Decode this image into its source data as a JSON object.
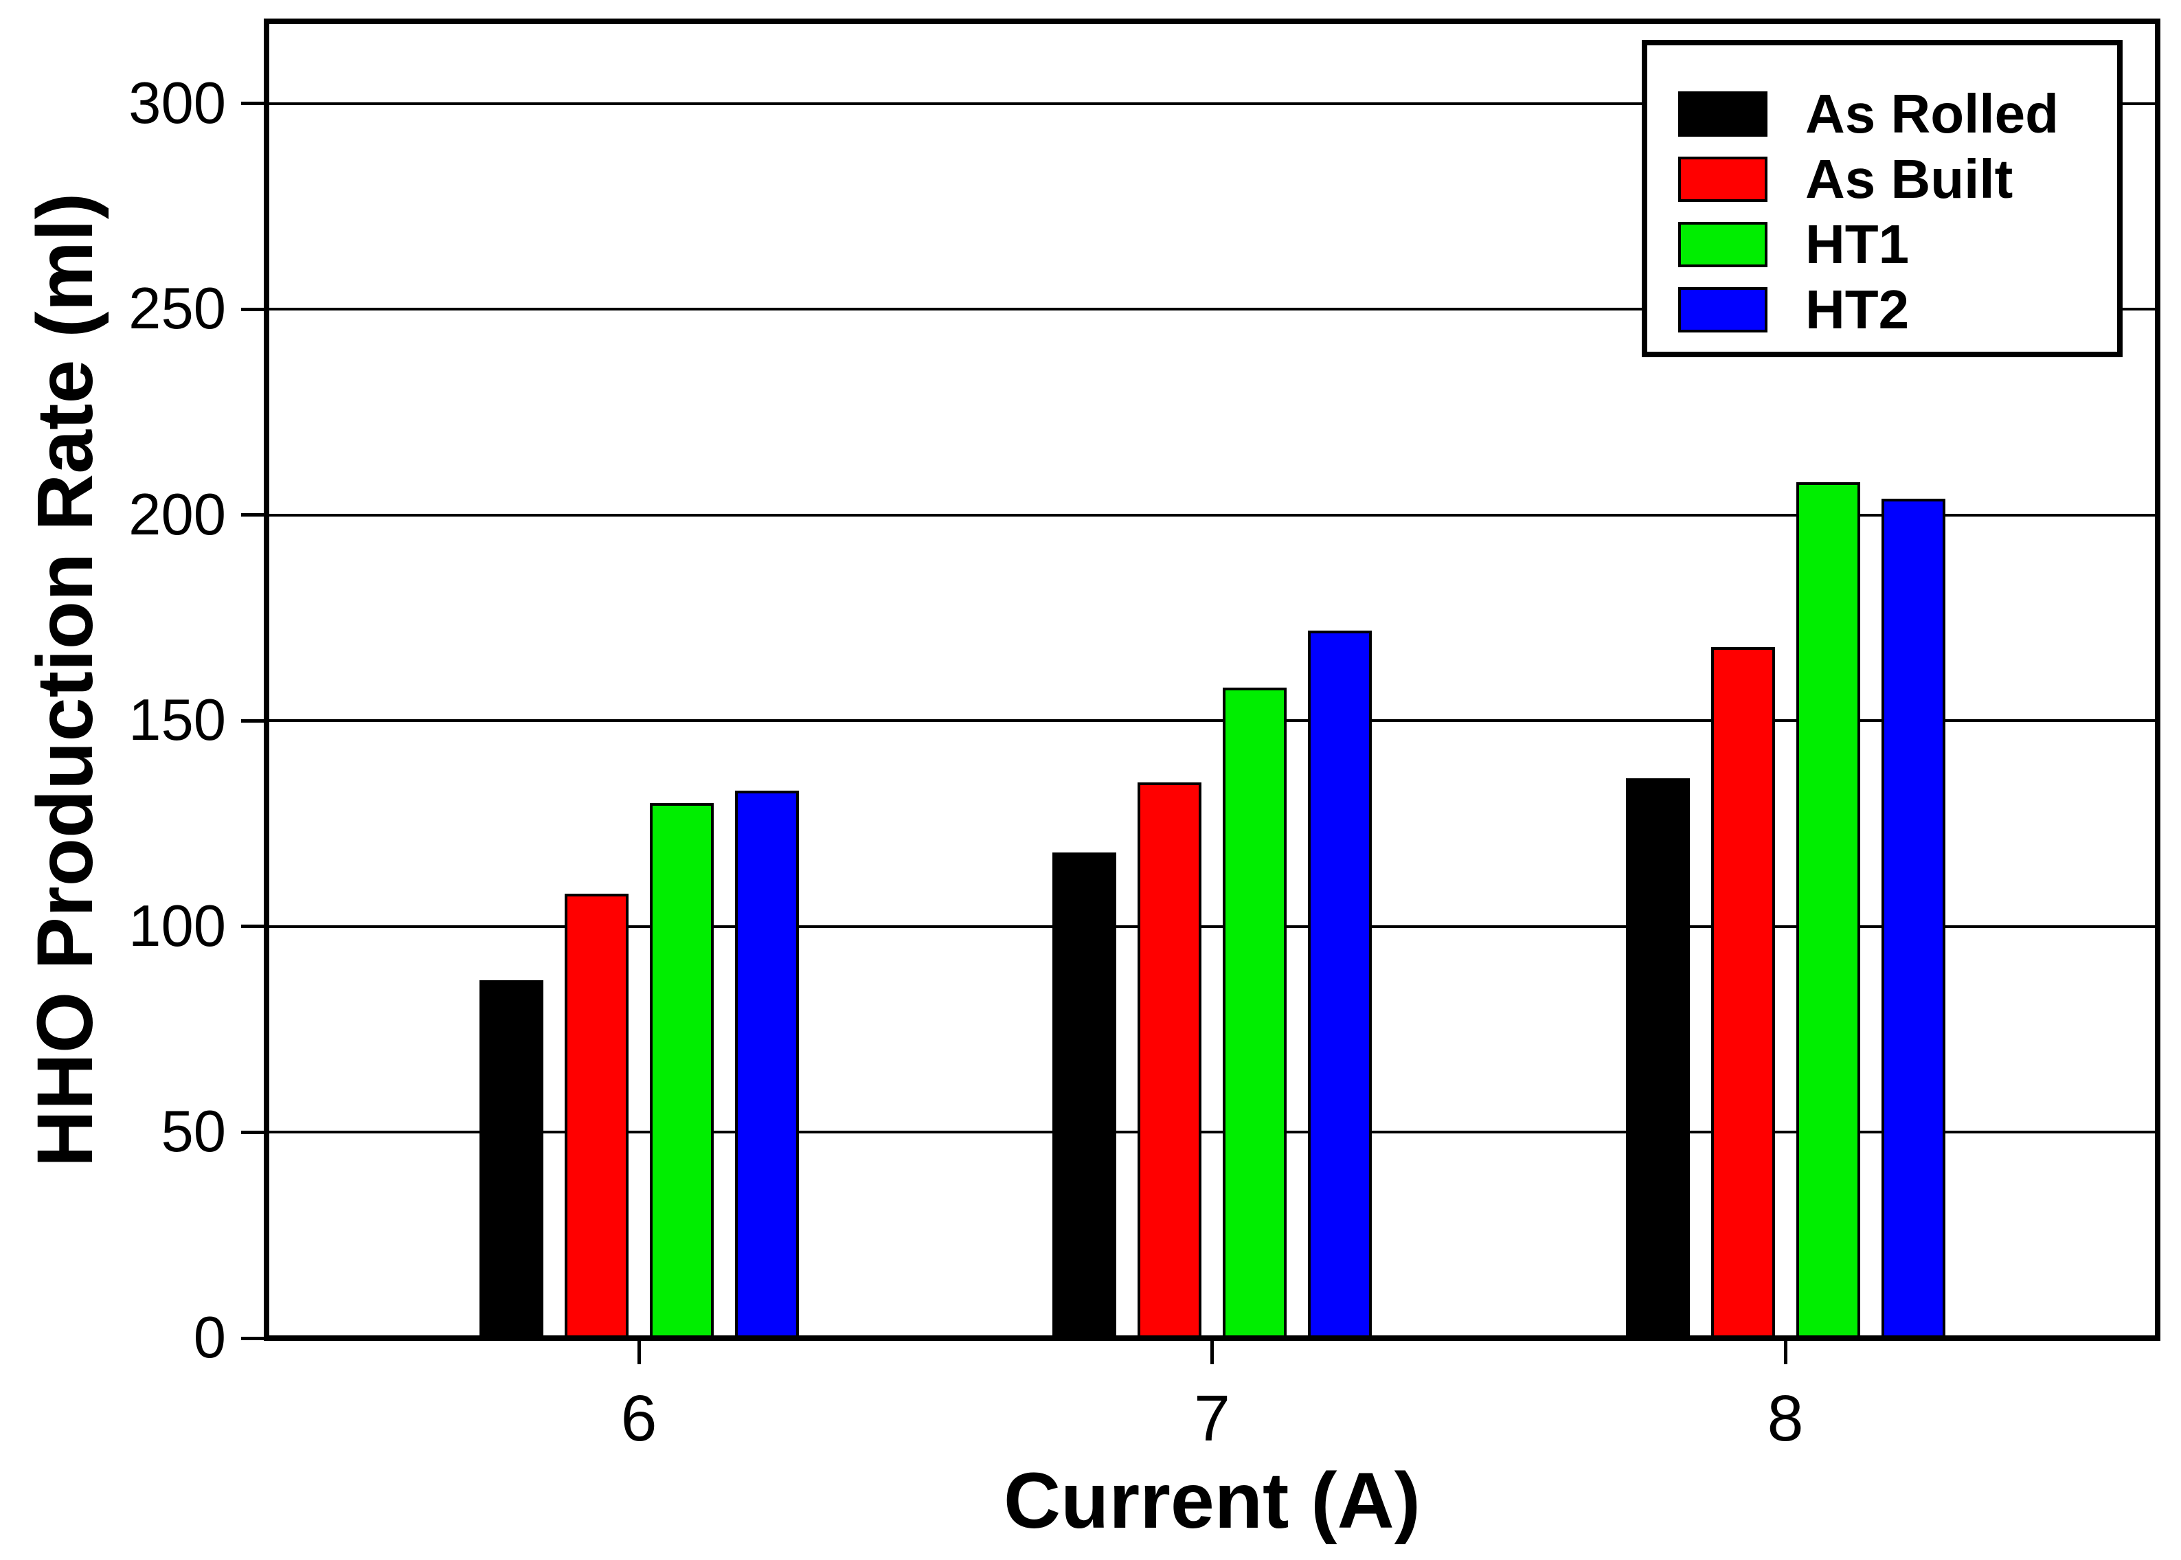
{
  "chart_data": {
    "type": "bar",
    "title": "",
    "xlabel": "Current (A)",
    "ylabel": "HHO Production Rate (ml)",
    "categories": [
      "6",
      "7",
      "8"
    ],
    "series": [
      {
        "name": "As Rolled",
        "color": "#000000",
        "values": [
          87,
          118,
          136
        ]
      },
      {
        "name": "As Built",
        "color": "#FF0000",
        "values": [
          108,
          135,
          168
        ]
      },
      {
        "name": "HT1",
        "color": "#00EE00",
        "values": [
          130,
          158,
          208
        ]
      },
      {
        "name": "HT2",
        "color": "#0000FF",
        "values": [
          133,
          172,
          204
        ]
      }
    ],
    "yticks": [
      0,
      50,
      100,
      150,
      200,
      250,
      300
    ],
    "ylim": [
      0,
      320
    ],
    "grid": true,
    "legend_position": "top-right",
    "background_color": "#FFFFFF",
    "axis_color": "#000000"
  }
}
